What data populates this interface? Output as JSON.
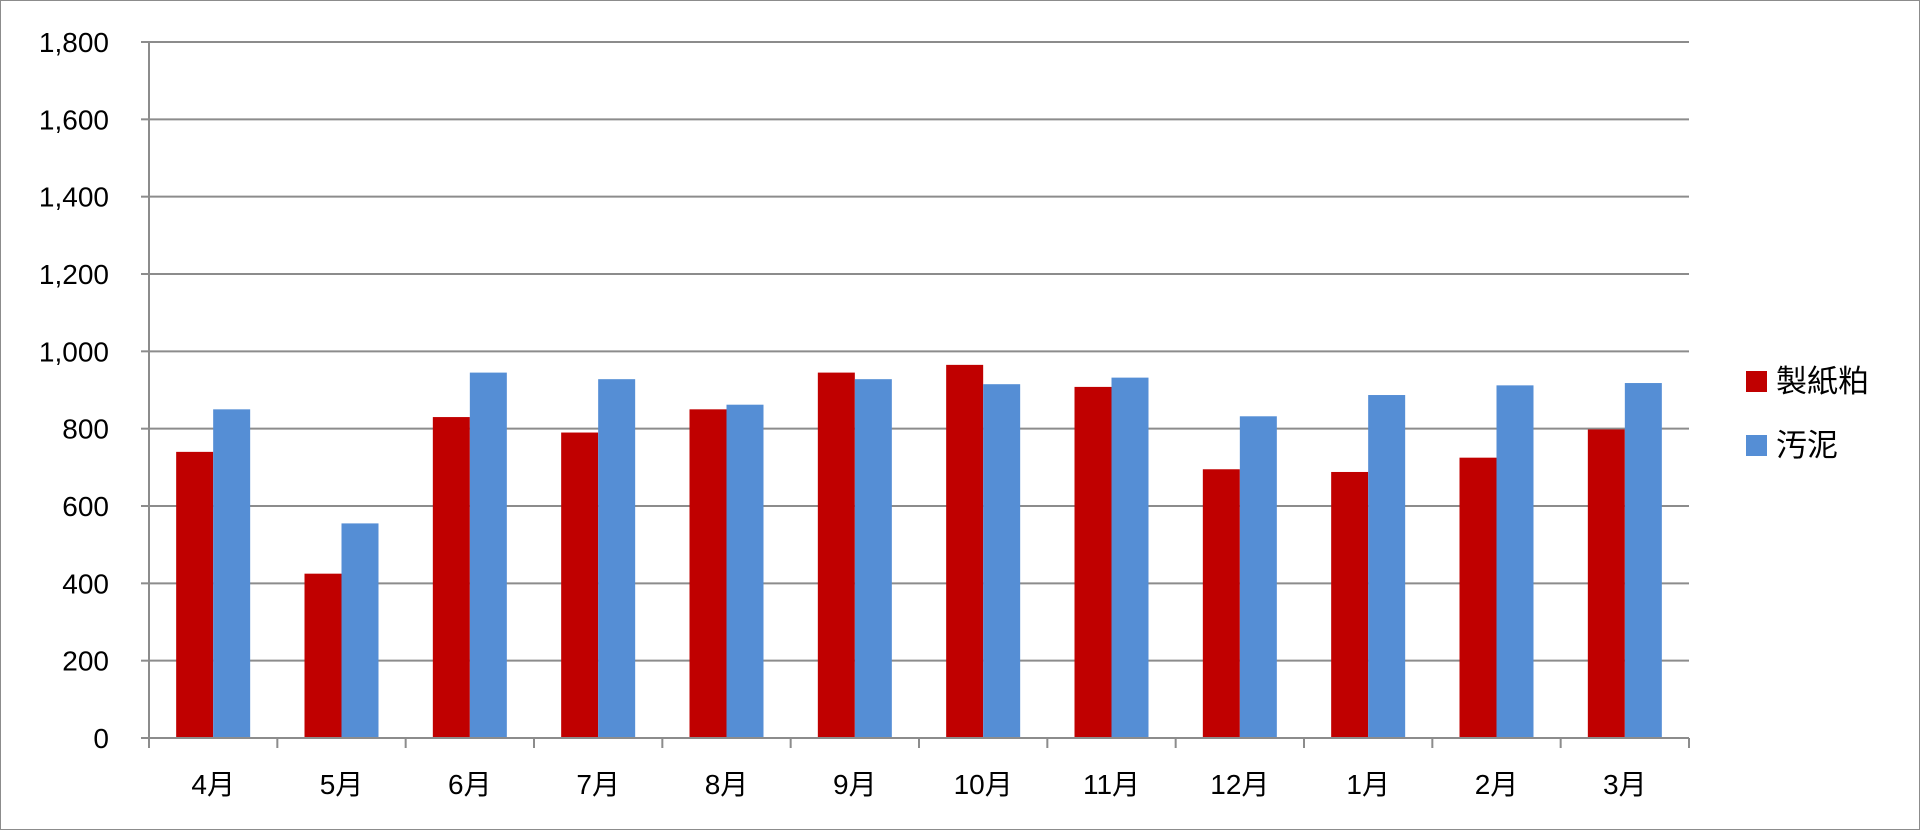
{
  "chart_data": {
    "type": "bar",
    "categories": [
      "4月",
      "5月",
      "6月",
      "7月",
      "8月",
      "9月",
      "10月",
      "11月",
      "12月",
      "1月",
      "2月",
      "3月"
    ],
    "series": [
      {
        "name": "製紙粕",
        "color": "#c00000",
        "values": [
          740,
          425,
          830,
          790,
          850,
          945,
          965,
          908,
          695,
          688,
          725,
          798
        ]
      },
      {
        "name": "汚泥",
        "color": "#558ed5",
        "values": [
          850,
          555,
          945,
          928,
          862,
          928,
          915,
          932,
          832,
          887,
          912,
          918
        ]
      }
    ],
    "ylim": [
      0,
      1800
    ],
    "yticks": [
      0,
      200,
      400,
      600,
      800,
      1000,
      1200,
      1400,
      1600,
      1800
    ],
    "ytick_labels": [
      "0",
      "200",
      "400",
      "600",
      "800",
      "1,000",
      "1,200",
      "1,400",
      "1,600",
      "1,800"
    ],
    "title": "",
    "xlabel": "",
    "ylabel": "",
    "grid": true,
    "legend_position": "right"
  }
}
